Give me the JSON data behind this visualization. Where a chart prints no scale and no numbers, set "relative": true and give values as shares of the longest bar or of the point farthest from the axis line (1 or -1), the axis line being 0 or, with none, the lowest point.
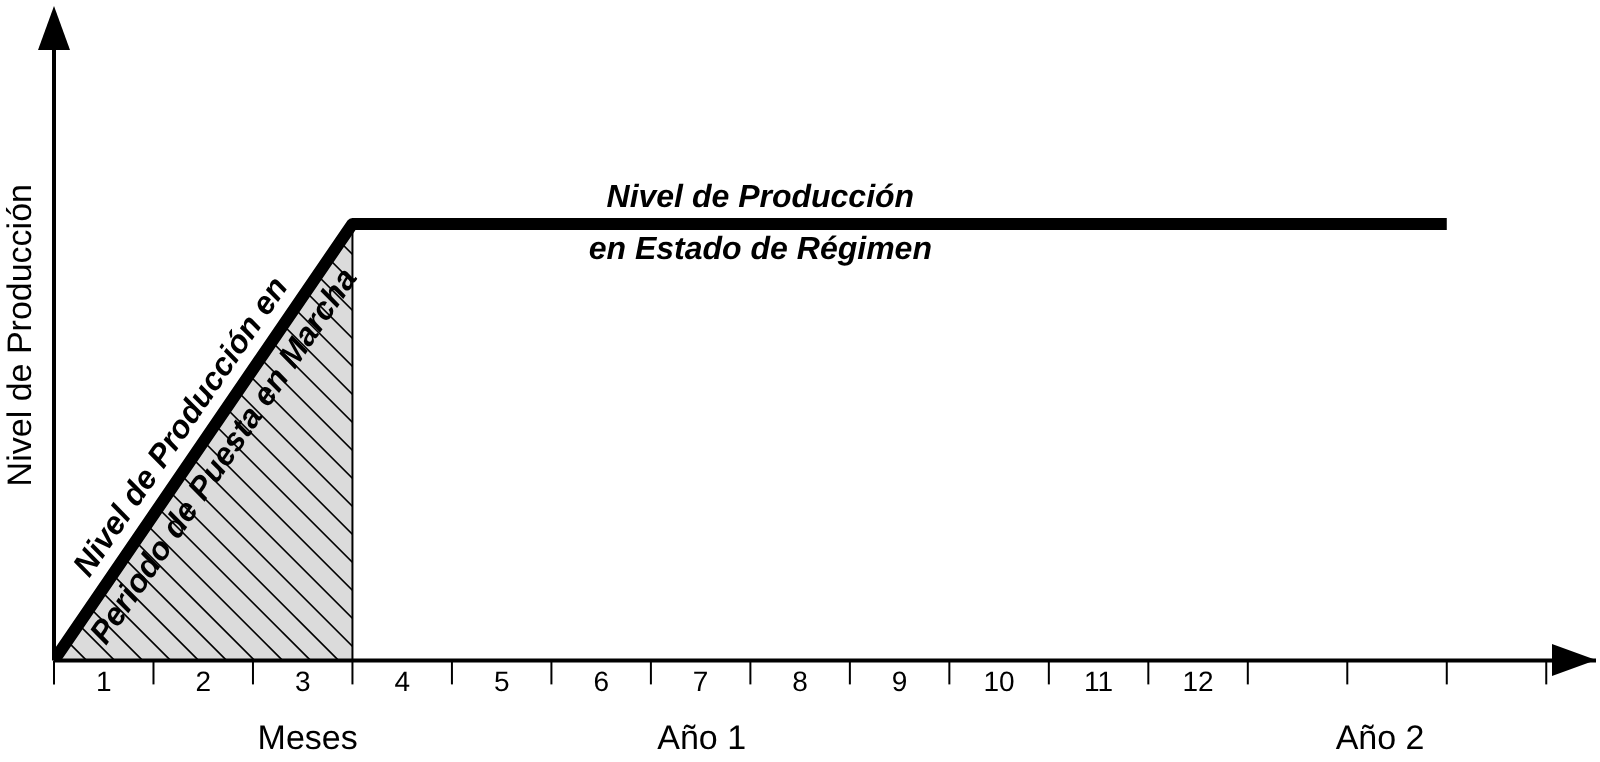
{
  "chart_data": {
    "type": "line",
    "relative": true,
    "ylabel": "Nivel de Producción",
    "xlabel": "Meses",
    "xlim": [
      0,
      15.5
    ],
    "xticks": [
      {
        "value": 0,
        "label": null
      },
      {
        "value": 0.5,
        "label": "1"
      },
      {
        "value": 1,
        "label": null
      },
      {
        "value": 1.5,
        "label": "2"
      },
      {
        "value": 2,
        "label": null
      },
      {
        "value": 2.5,
        "label": "3"
      },
      {
        "value": 3,
        "label": null
      },
      {
        "value": 3.5,
        "label": "4"
      },
      {
        "value": 4,
        "label": null
      },
      {
        "value": 4.5,
        "label": "5"
      },
      {
        "value": 5,
        "label": null
      },
      {
        "value": 5.5,
        "label": "6"
      },
      {
        "value": 6,
        "label": null
      },
      {
        "value": 6.5,
        "label": "7"
      },
      {
        "value": 7,
        "label": null
      },
      {
        "value": 7.5,
        "label": "8"
      },
      {
        "value": 8,
        "label": null
      },
      {
        "value": 8.5,
        "label": "9"
      },
      {
        "value": 9,
        "label": null
      },
      {
        "value": 9.5,
        "label": "10"
      },
      {
        "value": 10,
        "label": null
      },
      {
        "value": 10.5,
        "label": "11"
      },
      {
        "value": 11,
        "label": null
      },
      {
        "value": 11.5,
        "label": "12"
      },
      {
        "value": 12,
        "label": null
      },
      {
        "value": 13,
        "label": null
      },
      {
        "value": 14,
        "label": null
      },
      {
        "value": 15,
        "label": null
      }
    ],
    "series": [
      {
        "type": "area",
        "color": "#000000",
        "x": [
          0,
          3
        ],
        "values": [
          0,
          1
        ]
      },
      {
        "type": "line",
        "color": "#000000",
        "x": [
          0,
          3,
          14
        ],
        "values": [
          0,
          1,
          1
        ]
      }
    ],
    "annotations": [
      {
        "text": "Nivel de Producción en\nPeriodo de Puesta en Marcha",
        "x": 1.5,
        "y": 0.5
      },
      {
        "text": "Nivel de Producción\nen Estado de Régimen",
        "x": 7.1,
        "y": 1
      },
      "Año 1",
      "Año 2"
    ],
    "legend": false,
    "marker": "none",
    "line_style": "solid"
  }
}
